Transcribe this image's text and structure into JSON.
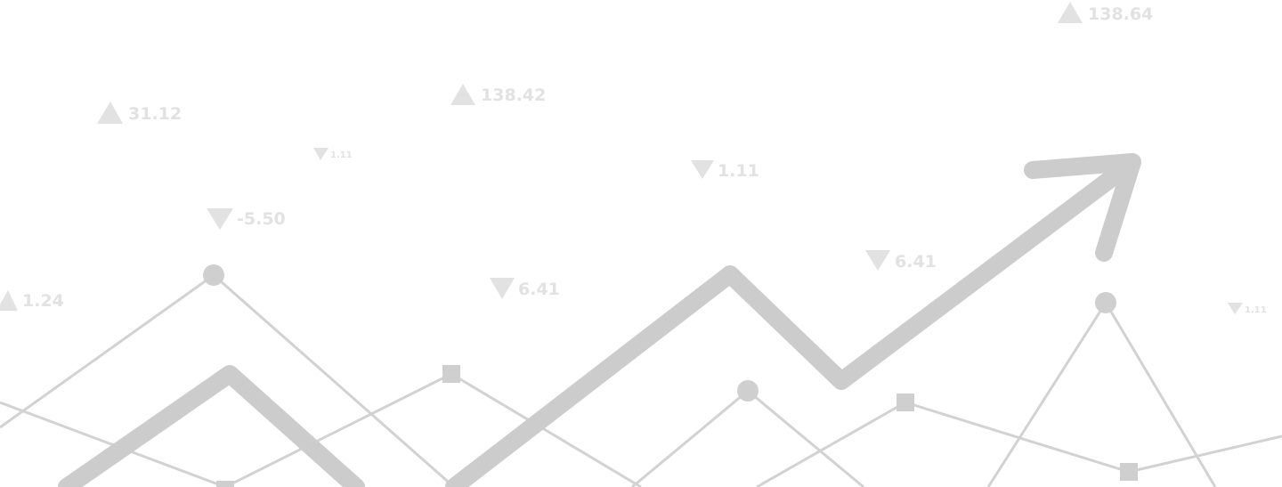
{
  "colors": {
    "background": "#ffffff",
    "line": "#cfcfcf",
    "thick_line": "#cccccc",
    "ticker": "#e4e4e4"
  },
  "tickers": [
    {
      "direction": "up",
      "value": "138.64"
    },
    {
      "direction": "up",
      "value": "138.42"
    },
    {
      "direction": "up",
      "value": "31.12"
    },
    {
      "direction": "down",
      "value": "1.11"
    },
    {
      "direction": "down",
      "value": "1.11"
    },
    {
      "direction": "down",
      "value": "-5.50"
    },
    {
      "direction": "down",
      "value": "6.41"
    },
    {
      "direction": "down",
      "value": "6.41"
    },
    {
      "direction": "up",
      "value": "1.24"
    },
    {
      "direction": "down",
      "value": "1.11"
    }
  ],
  "icons": {
    "up": "triangle-up-icon",
    "down": "triangle-down-icon",
    "trend_arrow": "trend-arrow-icon"
  }
}
